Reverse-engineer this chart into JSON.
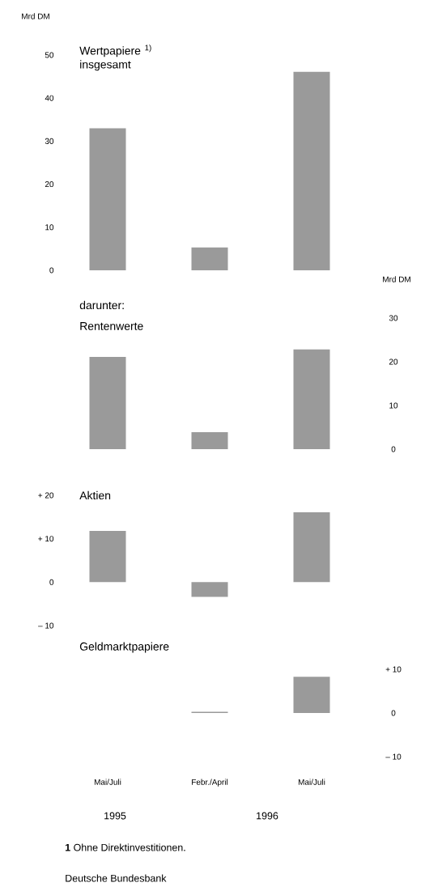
{
  "chart_data": [
    {
      "type": "bar",
      "title": "Wertpapiere $^{1)}$ insgesamt",
      "ylabel": "Mrd DM",
      "categories": [
        null,
        null,
        null
      ],
      "series": [
        {
          "color": "#9a9a9a",
          "values": [
            33,
            5.3,
            46.1
          ]
        }
      ],
      "ylim": [
        0,
        50
      ],
      "yticks": [
        0,
        10,
        20,
        30,
        40,
        50
      ],
      "tick_labels": "y"
    },
    {
      "type": "bar",
      "subtitle": "darunter:",
      "title": "Rentenwerte",
      "ylabel": "Mrd DM",
      "categories": [
        null,
        null,
        null
      ],
      "series": [
        {
          "color": "#9a9a9a",
          "values": [
            21.1,
            3.9,
            22.8
          ]
        }
      ],
      "ylim": [
        0,
        30
      ],
      "yticks": [
        0,
        10,
        20,
        30
      ],
      "tick_labels": "y"
    },
    {
      "type": "bar",
      "title": "Aktien",
      "categories": [
        null,
        null,
        null
      ],
      "series": [
        {
          "color": "#9a9a9a",
          "values": [
            11.8,
            -3.4,
            16.1
          ]
        }
      ],
      "ylim": [
        -10,
        20
      ],
      "yticks": [
        {
          "value": -10,
          "label": "– 10"
        },
        0,
        {
          "value": 10,
          "label": "+ 10"
        },
        {
          "value": 20,
          "label": "+ 20"
        }
      ],
      "tick_labels": "y"
    },
    {
      "type": "bar",
      "title": "Geldmarktpapiere",
      "categories": [
        "Mai/Juli",
        "Febr./April",
        "Mai/Juli"
      ],
      "series": [
        {
          "color": "#9a9a9a",
          "values": [
            0,
            0.3,
            8.3
          ],
          "axis": "y2"
        }
      ],
      "y2lim": [
        -10,
        10
      ],
      "y2ticks": [
        {
          "value": -10,
          "label": "– 10"
        },
        0,
        {
          "value": 10,
          "label": "+ 10"
        }
      ],
      "annotations": [
        "1995",
        "1996",
        "**1** Ohne Direktinvestitionen.",
        "Deutsche Bundesbank"
      ]
    }
  ]
}
